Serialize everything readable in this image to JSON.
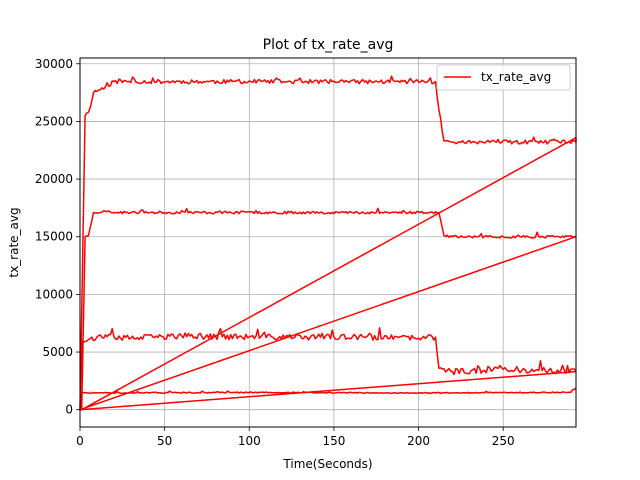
{
  "chart_data": {
    "type": "line",
    "title": "Plot of tx_rate_avg",
    "xlabel": "Time(Seconds)",
    "ylabel": "tx_rate_avg",
    "xlim": [
      0,
      293
    ],
    "ylim": [
      -1500,
      30500
    ],
    "xticks": [
      0,
      50,
      100,
      150,
      200,
      250
    ],
    "yticks": [
      0,
      5000,
      10000,
      15000,
      20000,
      25000,
      30000
    ],
    "grid": true,
    "legend_position": "upper right",
    "series": [
      {
        "name": "tx_rate_avg",
        "color": "#ff0000",
        "segments": [
          {
            "kind": "noisy_ramp",
            "x": [
              0,
              3,
              5,
              8,
              15,
              20,
              210,
              212,
              215,
              220,
              293
            ],
            "y": [
              0,
              25500,
              25800,
              27500,
              28000,
              28450,
              28450,
              26000,
              23300,
              23200,
              23200
            ],
            "noise": 180,
            "seed": 11
          },
          {
            "kind": "line",
            "x": [
              293,
              1
            ],
            "y": [
              23600,
              0
            ]
          },
          {
            "kind": "noisy_ramp",
            "x": [
              1,
              3,
              5,
              8,
              15,
              20,
              212,
              215,
              220,
              293
            ],
            "y": [
              0,
              15000,
              15100,
              17100,
              17200,
              17100,
              17100,
              15100,
              15000,
              15000
            ],
            "noise": 110,
            "seed": 23
          },
          {
            "kind": "line",
            "x": [
              293,
              0
            ],
            "y": [
              15000,
              0
            ]
          },
          {
            "kind": "noisy_ramp",
            "x": [
              0,
              1,
              5,
              10,
              30,
              60,
              100,
              150,
              200,
              210,
              212,
              220,
              250,
              293
            ],
            "y": [
              0,
              6000,
              6100,
              6300,
              6200,
              6400,
              6300,
              6300,
              6200,
              6300,
              3600,
              3300,
              3500,
              3300
            ],
            "noise": 260,
            "seed": 37
          },
          {
            "kind": "line",
            "x": [
              293,
              0
            ],
            "y": [
              3300,
              0
            ]
          },
          {
            "kind": "noisy_ramp",
            "x": [
              0,
              1,
              5,
              100,
              200,
              290,
              293
            ],
            "y": [
              0,
              1500,
              1450,
              1500,
              1450,
              1500,
              1900
            ],
            "noise": 45,
            "seed": 51
          }
        ]
      }
    ]
  }
}
